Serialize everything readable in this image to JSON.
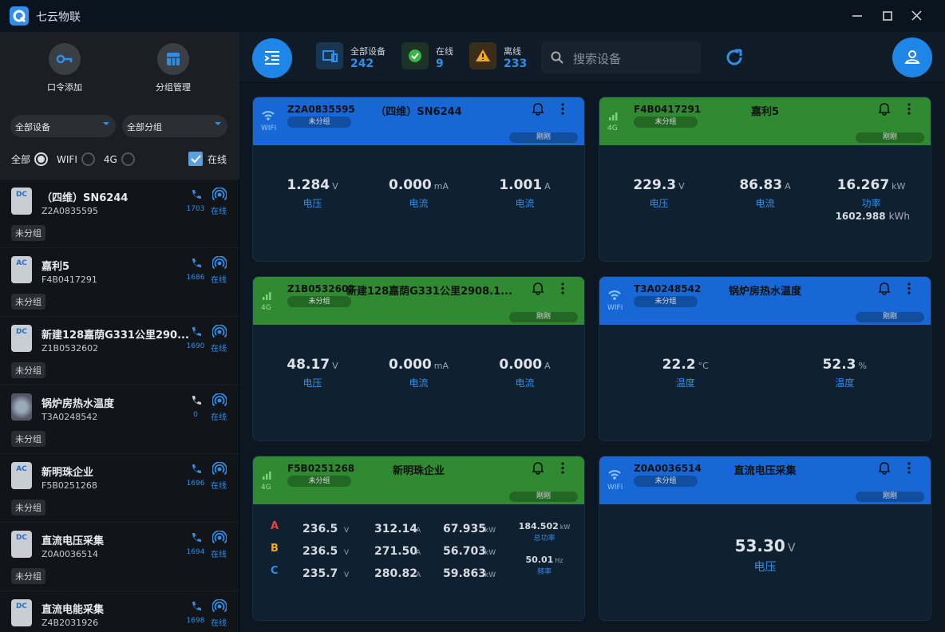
{
  "titlebar": {
    "title": "七云物联"
  },
  "sidebar": {
    "actions": [
      "口令添加",
      "分组管理"
    ],
    "filters": {
      "device": "全部设备",
      "group": "全部分组"
    },
    "radios": [
      "全部",
      "WIFI",
      "4G"
    ],
    "online_checkbox": "在线",
    "devices": [
      {
        "badge": "DC",
        "name": "（四维）SN6244",
        "id": "Z2A0835595",
        "calls": 1703,
        "status": "在线",
        "group": "未分组"
      },
      {
        "badge": "AC",
        "name": "嘉利5",
        "id": "F4B0417291",
        "calls": 1686,
        "status": "在线",
        "group": "未分组"
      },
      {
        "badge": "DC",
        "name": "新建128嘉荫G331公里290...",
        "id": "Z1B0532602",
        "calls": 1690,
        "status": "在线",
        "group": "未分组"
      },
      {
        "name": "锅炉房热水温度",
        "id": "T3A0248542",
        "calls": 0,
        "status": "在线",
        "group": "未分组"
      },
      {
        "badge": "AC",
        "name": "新明珠企业",
        "id": "F5B0251268",
        "calls": 1696,
        "status": "在线",
        "group": "未分组"
      },
      {
        "badge": "DC",
        "name": "直流电压采集",
        "id": "Z0A0036514",
        "calls": 1694,
        "status": "在线",
        "group": "未分组"
      },
      {
        "badge": "DC",
        "name": "直流电能采集",
        "id": "Z4B2031926",
        "calls": 1698,
        "status": "在线"
      }
    ]
  },
  "toolbar": {
    "stats": [
      {
        "label": "全部设备",
        "value": 242
      },
      {
        "label": "在线",
        "value": 9
      },
      {
        "label": "离线",
        "value": 233
      }
    ],
    "search_placeholder": "搜索设备"
  },
  "cards": [
    {
      "network": "WIFI",
      "id": "Z2A0835595",
      "title": "（四维）SN6244",
      "group": "未分组",
      "time": "刚刚",
      "metrics": [
        {
          "value": "1.284",
          "unit": "V",
          "label": "电压"
        },
        {
          "value": "0.000",
          "unit": "mA",
          "label": "电流"
        },
        {
          "value": "1.001",
          "unit": "A",
          "label": "电流"
        }
      ]
    },
    {
      "network": "4G",
      "id": "F4B0417291",
      "title": "嘉利5",
      "group": "未分组",
      "time": "刚刚",
      "metrics": [
        {
          "value": "229.3",
          "unit": "V",
          "label": "电压"
        },
        {
          "value": "86.83",
          "unit": "A",
          "label": "电流"
        },
        {
          "value": "16.267",
          "unit": "kW",
          "label": "功率"
        }
      ],
      "extra": {
        "value": "1602.988",
        "unit": "kWh"
      }
    },
    {
      "network": "4G",
      "id": "Z1B0532602",
      "title": "新建128嘉荫G331公里2908.1...",
      "group": "未分组",
      "time": "刚刚",
      "metrics": [
        {
          "value": "48.17",
          "unit": "V",
          "label": "电压"
        },
        {
          "value": "0.000",
          "unit": "mA",
          "label": "电流"
        },
        {
          "value": "0.000",
          "unit": "A",
          "label": "电流"
        }
      ]
    },
    {
      "network": "WIFI",
      "id": "T3A0248542",
      "title": "锅炉房热水温度",
      "group": "未分组",
      "time": "刚刚",
      "metrics": [
        {
          "value": "22.2",
          "unit": "°C",
          "label": "温度"
        },
        {
          "value": "52.3",
          "unit": "%",
          "label": "温度"
        }
      ]
    },
    {
      "network": "4G",
      "id": "F5B0251268",
      "title": "新明珠企业",
      "group": "未分组",
      "time": "刚刚",
      "phases": [
        {
          "phase": "A",
          "values": [
            {
              "value": "236.5",
              "unit": "V"
            },
            {
              "value": "312.14",
              "unit": "A"
            },
            {
              "value": "67.935",
              "unit": "kW"
            }
          ]
        },
        {
          "phase": "B",
          "values": [
            {
              "value": "236.5",
              "unit": "V"
            },
            {
              "value": "271.50",
              "unit": "A"
            },
            {
              "value": "56.703",
              "unit": "kW"
            }
          ]
        },
        {
          "phase": "C",
          "values": [
            {
              "value": "235.7",
              "unit": "V"
            },
            {
              "value": "280.82",
              "unit": "A"
            },
            {
              "value": "59.863",
              "unit": "kW"
            }
          ]
        }
      ],
      "summary": [
        {
          "value": "184.502",
          "unit": "kW",
          "label": "总功率"
        },
        {
          "value": "50.01",
          "unit": "Hz",
          "label": "频率"
        }
      ]
    },
    {
      "network": "WIFI",
      "id": "Z0A0036514",
      "title": "直流电压采集",
      "group": "未分组",
      "time": "刚刚",
      "metrics": [
        {
          "value": "53.30",
          "unit": "V",
          "label": "电压"
        }
      ]
    }
  ]
}
